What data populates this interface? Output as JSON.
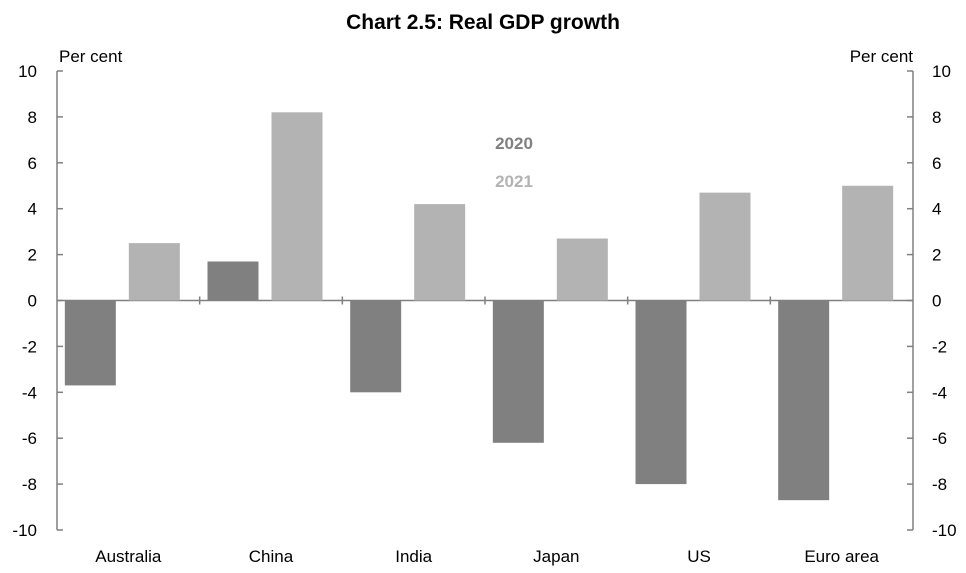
{
  "chart_data": {
    "type": "bar",
    "title": "Chart 2.5: Real GDP growth",
    "left_unit_label": "Per cent",
    "right_unit_label": "Per cent",
    "categories": [
      "Australia",
      "China",
      "India",
      "Japan",
      "US",
      "Euro area"
    ],
    "series": [
      {
        "name": "2020",
        "color": "#808080",
        "values": [
          -3.7,
          1.7,
          -4.0,
          -6.2,
          -8.0,
          -8.7
        ]
      },
      {
        "name": "2021",
        "color": "#b3b3b3",
        "values": [
          2.5,
          8.2,
          4.2,
          2.7,
          4.7,
          5.0
        ]
      }
    ],
    "ylim": [
      -10,
      10
    ],
    "yticks": [
      "10",
      "8",
      "6",
      "4",
      "2",
      "0",
      "-2",
      "-4",
      "-6",
      "-8",
      "-10"
    ],
    "grid": false,
    "legend_position": "inside-top-center",
    "dual_axis": true
  }
}
